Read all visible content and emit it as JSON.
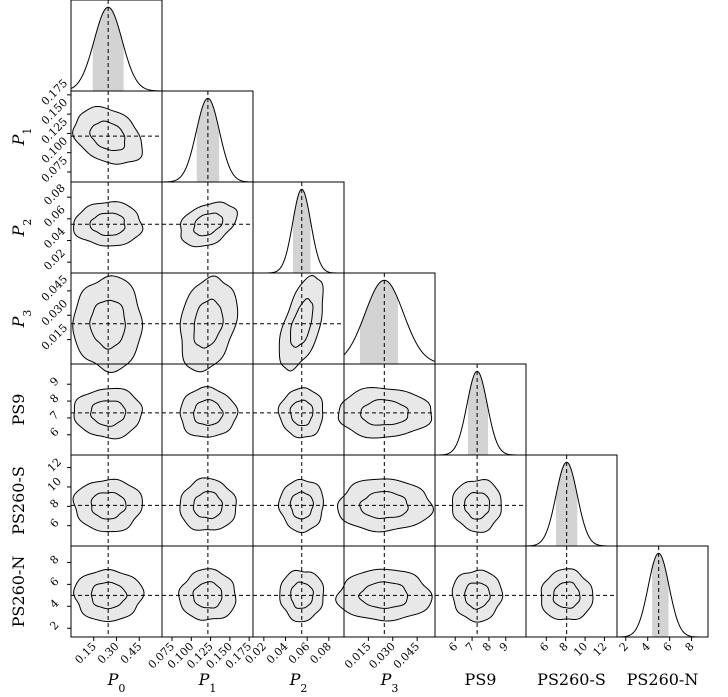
{
  "chart_data": {
    "type": "corner",
    "params": [
      {
        "name": "P",
        "sub": "0",
        "range": [
          0.0,
          0.6
        ],
        "ticks": [
          "0.15",
          "0.30",
          "0.45"
        ],
        "tick_values": [
          0.15,
          0.3,
          0.45
        ],
        "peak": 0.245,
        "sigma": 0.092,
        "band": [
          0.143,
          0.347
        ]
      },
      {
        "name": "P",
        "sub": "1",
        "range": [
          0.062,
          0.18
        ],
        "ticks": [
          "0.075",
          "0.100",
          "0.125",
          "0.150",
          "0.175"
        ],
        "tick_values": [
          0.075,
          0.1,
          0.125,
          0.15,
          0.175
        ],
        "peak": 0.1215,
        "sigma": 0.015,
        "band": [
          0.107,
          0.136
        ]
      },
      {
        "name": "P",
        "sub": "2",
        "range": [
          0.01,
          0.094
        ],
        "ticks": [
          "0.02",
          "0.04",
          "0.06",
          "0.08"
        ],
        "tick_values": [
          0.02,
          0.04,
          0.06,
          0.08
        ],
        "peak": 0.055,
        "sigma": 0.0083,
        "band": [
          0.0468,
          0.0632
        ]
      },
      {
        "name": "P",
        "sub": "3",
        "range": [
          0.0,
          0.056
        ],
        "ticks": [
          "0.015",
          "0.030",
          "0.045"
        ],
        "tick_values": [
          0.015,
          0.03,
          0.045
        ],
        "peak": 0.0248,
        "sigma": 0.0118,
        "band": [
          0.0098,
          0.0332
        ]
      },
      {
        "name": "PS9",
        "sub": "",
        "range": [
          4.8,
          10.2
        ],
        "ticks": [
          "6",
          "7",
          "8",
          "9"
        ],
        "tick_values": [
          6,
          7,
          8,
          9
        ],
        "peak": 7.3,
        "sigma": 0.6,
        "band": [
          6.75,
          7.95
        ]
      },
      {
        "name": "PS260-S",
        "sub": "",
        "range": [
          3.9,
          13.3
        ],
        "ticks": [
          "6",
          "8",
          "10",
          "12"
        ],
        "tick_values": [
          6,
          8,
          10,
          12
        ],
        "peak": 8.1,
        "sigma": 1.1,
        "band": [
          7.0,
          9.2
        ]
      },
      {
        "name": "PS260-N",
        "sub": "",
        "range": [
          1.2,
          9.5
        ],
        "ticks": [
          "2",
          "4",
          "6",
          "8"
        ],
        "tick_values": [
          2,
          4,
          6,
          8
        ],
        "peak": 5.0,
        "sigma": 0.95,
        "band": [
          4.4,
          5.9
        ]
      }
    ],
    "left_tick_labels": {
      "P1": [
        "0.075",
        "0.100",
        "0.125",
        "0.150",
        "0.175"
      ],
      "P2": [
        "0.02",
        "0.04",
        "0.06",
        "0.08"
      ],
      "P3": [
        "0.015",
        "0.030",
        "0.045"
      ],
      "PS9": [
        "6",
        "7",
        "8",
        "9"
      ],
      "PS260-S": [
        "6",
        "8",
        "10",
        "12"
      ],
      "PS260-N": [
        "2",
        "4",
        "6",
        "8"
      ]
    },
    "correlations": {
      "1,0": -0.3,
      "2,1": 0.35,
      "3,2": 0.55,
      "3,1": 0.25
    },
    "colors": {
      "fill": "#e8e8e8",
      "band": "#d3d3d3",
      "line": "#000000"
    }
  }
}
